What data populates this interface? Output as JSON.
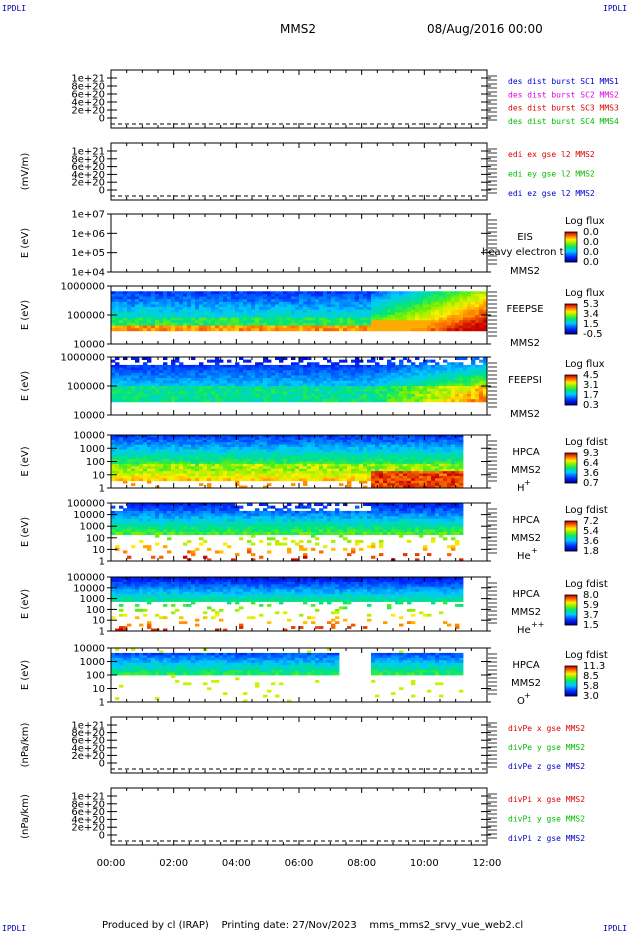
{
  "corner_label": "IPDLI",
  "header": {
    "title": "MMS2",
    "datetime": "08/Aug/2016 00:00"
  },
  "footer": {
    "text": "Produced by cl (IRAP)    Printing date: 27/Nov/2023    mms_mms2_srvy_vue_web2.cl"
  },
  "colors": {
    "black": "#000000",
    "blue": "#0000cc",
    "red": "#dd0000",
    "green": "#00bb00",
    "magenta": "#dd00dd"
  },
  "chart_data": [
    {
      "type": "line",
      "ylabel": "",
      "yticks": [
        "1e+21",
        "8e+20",
        "6e+20",
        "4e+20",
        "2e+20",
        "0"
      ],
      "ylim": [
        0,
        1e+21
      ],
      "values_note": "",
      "series": [
        {
          "name": "des dist burst SC1 MMS1",
          "color": "#0000cc",
          "values": [
            0
          ]
        },
        {
          "name": "des dist burst SC2 MMS2",
          "color": "#dd00dd",
          "values": [
            0
          ]
        },
        {
          "name": "des dist burst SC3 MMS3",
          "color": "#dd0000",
          "values": [
            0
          ]
        },
        {
          "name": "des dist burst SC4 MMS4",
          "color": "#00bb00",
          "values": [
            0
          ]
        }
      ],
      "dashed_zero": true
    },
    {
      "type": "line",
      "ylabel": "(mV/m)",
      "yticks": [
        "1e+21",
        "8e+20",
        "6e+20",
        "4e+20",
        "2e+20",
        "0"
      ],
      "ylim": [
        0,
        1e+21
      ],
      "series": [
        {
          "name": "edi ex gse l2 MMS2",
          "color": "#dd0000",
          "values": [
            0
          ]
        },
        {
          "name": "edi ey gse l2 MMS2",
          "color": "#00bb00",
          "values": [
            0
          ]
        },
        {
          "name": "edi ez gse l2 MMS2",
          "color": "#0000cc",
          "values": [
            0
          ]
        }
      ],
      "dashed_zero": true
    },
    {
      "type": "heatmap",
      "ylabel": "E (eV)",
      "yticks": [
        "1e+07",
        "1e+06",
        "1e+05",
        "1e+04"
      ],
      "instrument": [
        "EIS",
        "MMS2"
      ],
      "overlay_text": "heavy electron t",
      "colorbar_title": "Log flux",
      "colorbar_ticks": [
        "0.0",
        "0.0",
        "0.0",
        "0.0"
      ],
      "empty": true
    },
    {
      "type": "heatmap",
      "ylabel": "E (eV)",
      "yticks": [
        "1000000",
        "100000",
        "10000"
      ],
      "instrument": [
        "FEEPSE",
        "MMS2"
      ],
      "colorbar_title": "Log flux",
      "colorbar_ticks": [
        "5.3",
        "3.4",
        "1.5",
        "-0.5"
      ],
      "pattern": "feepse",
      "data_end_hour": 12
    },
    {
      "type": "heatmap",
      "ylabel": "E (eV)",
      "yticks": [
        "1000000",
        "100000",
        "10000"
      ],
      "instrument": [
        "FEEPSI",
        "MMS2"
      ],
      "colorbar_title": "Log flux",
      "colorbar_ticks": [
        "4.5",
        "3.1",
        "1.7",
        "0.3"
      ],
      "pattern": "feepsi",
      "data_end_hour": 12
    },
    {
      "type": "heatmap",
      "ylabel": "E (eV)",
      "yticks": [
        "10000",
        "1000",
        "100",
        "10",
        "1"
      ],
      "instrument": [
        "HPCA",
        "MMS2",
        "H",
        "+"
      ],
      "colorbar_title": "Log fdist",
      "colorbar_ticks": [
        "9.3",
        "6.4",
        "3.6",
        "0.7"
      ],
      "pattern": "hpca_h",
      "data_end_hour": 11.2
    },
    {
      "type": "heatmap",
      "ylabel": "E (eV)",
      "yticks": [
        "100000",
        "10000",
        "1000",
        "100",
        "10",
        "1"
      ],
      "instrument": [
        "HPCA",
        "MMS2",
        "He",
        "+"
      ],
      "colorbar_title": "Log fdist",
      "colorbar_ticks": [
        "7.2",
        "5.4",
        "3.6",
        "1.8"
      ],
      "pattern": "hpca_he1",
      "data_end_hour": 11.2
    },
    {
      "type": "heatmap",
      "ylabel": "E (eV)",
      "yticks": [
        "100000",
        "10000",
        "1000",
        "100",
        "10",
        "1"
      ],
      "instrument": [
        "HPCA",
        "MMS2",
        "He",
        "++"
      ],
      "colorbar_title": "Log fdist",
      "colorbar_ticks": [
        "8.0",
        "5.9",
        "3.7",
        "1.5"
      ],
      "pattern": "hpca_he2",
      "data_end_hour": 11.2
    },
    {
      "type": "heatmap",
      "ylabel": "E (eV)",
      "yticks": [
        "10000",
        "1000",
        "100",
        "10",
        "1"
      ],
      "instrument": [
        "HPCA",
        "MMS2",
        "O",
        "+"
      ],
      "colorbar_title": "Log fdist",
      "colorbar_ticks": [
        "11.3",
        "8.5",
        "5.8",
        "3.0"
      ],
      "pattern": "hpca_o",
      "data_end_hour": 11.2
    },
    {
      "type": "line",
      "ylabel": "(nPa/km)",
      "yticks": [
        "1e+21",
        "8e+20",
        "6e+20",
        "4e+20",
        "2e+20",
        "0"
      ],
      "ylim": [
        0,
        1e+21
      ],
      "series": [
        {
          "name": "divPe x gse MMS2",
          "color": "#dd0000",
          "values": [
            0
          ]
        },
        {
          "name": "divPe y gse MMS2",
          "color": "#00bb00",
          "values": [
            0
          ]
        },
        {
          "name": "divPe z gse MMS2",
          "color": "#0000cc",
          "values": [
            0
          ]
        }
      ],
      "dashed_zero": true
    },
    {
      "type": "line",
      "ylabel": "(nPa/km)",
      "yticks": [
        "1e+21",
        "8e+20",
        "6e+20",
        "4e+20",
        "2e+20",
        "0"
      ],
      "ylim": [
        0,
        1e+21
      ],
      "series": [
        {
          "name": "divPi x gse MMS2",
          "color": "#dd0000",
          "values": [
            0
          ]
        },
        {
          "name": "divPi y gse MMS2",
          "color": "#00bb00",
          "values": [
            0
          ]
        },
        {
          "name": "divPi z gse MMS2",
          "color": "#0000cc",
          "values": [
            0
          ]
        }
      ],
      "dashed_zero": true
    }
  ],
  "x_axis": {
    "ticks": [
      "00:00",
      "02:00",
      "04:00",
      "06:00",
      "08:00",
      "10:00",
      "12:00"
    ],
    "range_hours": [
      0,
      12
    ]
  }
}
